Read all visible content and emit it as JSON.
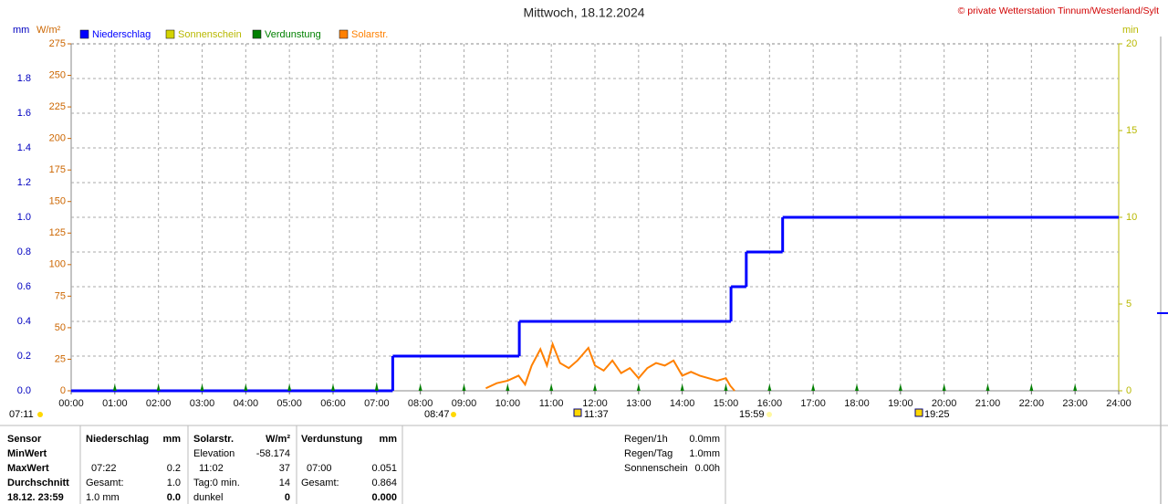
{
  "chart_data": {
    "type": "line",
    "title": "Mittwoch, 18.12.2024",
    "credit": "© private Wetterstation Tinnum/Westerland/Sylt",
    "y_label": "mm",
    "w_label": "W/m²",
    "y2_label": "min",
    "xlim": [
      0,
      24
    ],
    "xticks": [
      {
        "value": 0,
        "label": "00:00"
      },
      {
        "value": 1,
        "label": "01:00"
      },
      {
        "value": 2,
        "label": "02:00"
      },
      {
        "value": 3,
        "label": "03:00"
      },
      {
        "value": 4,
        "label": "04:00"
      },
      {
        "value": 5,
        "label": "05:00"
      },
      {
        "value": 6,
        "label": "06:00"
      },
      {
        "value": 7,
        "label": "07:00"
      },
      {
        "value": 8,
        "label": "08:00"
      },
      {
        "value": 9,
        "label": "09:00"
      },
      {
        "value": 10,
        "label": "10:00"
      },
      {
        "value": 11,
        "label": "11:00"
      },
      {
        "value": 12,
        "label": "12:00"
      },
      {
        "value": 13,
        "label": "13:00"
      },
      {
        "value": 14,
        "label": "14:00"
      },
      {
        "value": 15,
        "label": "15:00"
      },
      {
        "value": 16,
        "label": "16:00"
      },
      {
        "value": 17,
        "label": "17:00"
      },
      {
        "value": 18,
        "label": "18:00"
      },
      {
        "value": 19,
        "label": "19:00"
      },
      {
        "value": 20,
        "label": "20:00"
      },
      {
        "value": 21,
        "label": "21:00"
      },
      {
        "value": 22,
        "label": "22:00"
      },
      {
        "value": 23,
        "label": "23:00"
      },
      {
        "value": 24,
        "label": "24:00"
      }
    ],
    "ylim": [
      0,
      2
    ],
    "yticks": [
      {
        "value": 0,
        "label": "0.0"
      },
      0.2,
      0.4,
      0.6,
      0.8,
      {
        "value": 1,
        "label": "1.0"
      },
      1.2,
      1.4,
      1.6,
      1.8
    ],
    "wlim": [
      0,
      275
    ],
    "wticks": [
      0,
      25,
      50,
      75,
      100,
      125,
      150,
      175,
      200,
      225,
      250,
      275
    ],
    "y2lim": [
      0,
      20
    ],
    "y2ticks": [
      0,
      5,
      10,
      15,
      20
    ],
    "grid": true,
    "series": [
      {
        "name": "Niederschlag",
        "color": "#0000ff",
        "axis": "y",
        "style": "step",
        "x": [
          0,
          7.367,
          10.267,
          15.117,
          15.467,
          16.3
        ],
        "values": [
          0,
          0.2,
          0.4,
          0.6,
          0.8,
          1.0
        ]
      },
      {
        "name": "Sonnenschein",
        "color": "#d4d400",
        "axis": "y2",
        "style": "line",
        "x": [],
        "values": []
      },
      {
        "name": "Verdunstung",
        "color": "#008000",
        "axis": "y",
        "style": "spike",
        "x": [
          1,
          2,
          3,
          4,
          5,
          6,
          7,
          8,
          9,
          10,
          11,
          12,
          13,
          14,
          15,
          16,
          17,
          18,
          19,
          20,
          21,
          22,
          23
        ],
        "values": [
          0.04,
          0.04,
          0.04,
          0.04,
          0.04,
          0.04,
          0.051,
          0.04,
          0.04,
          0.04,
          0.04,
          0.04,
          0.04,
          0.04,
          0.04,
          0.04,
          0.04,
          0.04,
          0.04,
          0.04,
          0.04,
          0.04,
          0.04
        ]
      },
      {
        "name": "Solarstr.",
        "color": "#ff8000",
        "axis": "w",
        "style": "line",
        "x": [
          9.5,
          9.75,
          10.0,
          10.25,
          10.4,
          10.55,
          10.75,
          10.9,
          11.03,
          11.2,
          11.4,
          11.6,
          11.85,
          12.0,
          12.2,
          12.4,
          12.6,
          12.8,
          13.0,
          13.2,
          13.4,
          13.6,
          13.8,
          14.0,
          14.2,
          14.4,
          14.6,
          14.8,
          15.0,
          15.1,
          15.2
        ],
        "values": [
          2,
          6,
          8,
          12,
          5,
          20,
          33,
          20,
          37,
          22,
          18,
          24,
          34,
          20,
          16,
          24,
          14,
          18,
          10,
          18,
          22,
          20,
          24,
          12,
          15,
          12,
          10,
          8,
          10,
          4,
          0
        ]
      }
    ],
    "events": [
      "07:11",
      "08:47",
      "11:37",
      "15:59",
      "19:25"
    ]
  },
  "table": {
    "rows": [
      [
        "Sensor",
        "Niederschlag",
        "mm",
        "Solarstr.",
        "W/m²",
        "Verdunstung",
        "mm"
      ],
      [
        "MinWert",
        null,
        null,
        "Elevation",
        "-58.174",
        null,
        null
      ],
      [
        "MaxWert",
        "07:22",
        "0.2",
        "11:02",
        "37",
        "07:00",
        "0.051"
      ],
      [
        "Durchschnitt",
        "Gesamt:",
        "1.0",
        "Tag:0 min.",
        "14",
        "Gesamt:",
        "0.864"
      ],
      [
        "18.12. 23:59",
        "1.0 mm",
        "0.0",
        "dunkel",
        "0",
        null,
        "0.000"
      ]
    ]
  },
  "summary": [
    [
      "Regen/1h",
      "0.0mm"
    ],
    [
      "Regen/Tag",
      "1.0mm"
    ],
    [
      "Sonnenschein",
      "0.00h"
    ]
  ]
}
